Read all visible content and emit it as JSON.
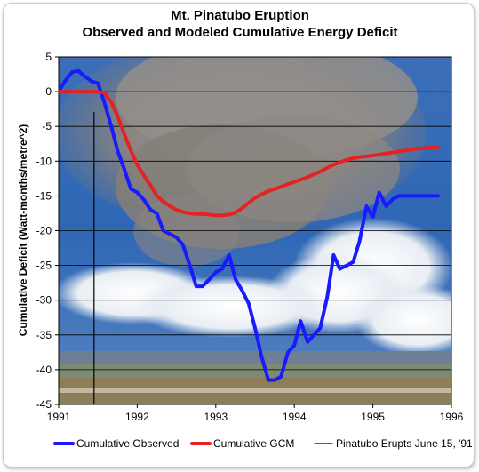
{
  "chart_data": {
    "type": "line",
    "title": "Mt. Pinatubo Eruption",
    "subtitle": "Observed and Modeled Cumulative Energy Deficit",
    "xlabel": "",
    "ylabel": "Cumulative Deficit (Watt-months/metre^2)",
    "xlim": [
      1991,
      1996
    ],
    "ylim": [
      -45,
      5
    ],
    "xticks": [
      "1991",
      "1992",
      "1993",
      "1994",
      "1995",
      "1996"
    ],
    "yticks": [
      "5",
      "0",
      "-5",
      "-10",
      "-15",
      "-20",
      "-25",
      "-30",
      "-35",
      "-40",
      "-45"
    ],
    "grid": "horizontal",
    "legend_position": "bottom",
    "background": "photograph of the eruption plume",
    "series": [
      {
        "name": "Cumulative Observed",
        "color": "#1a1aff",
        "x": [
          1991.0,
          1991.08,
          1991.17,
          1991.25,
          1991.33,
          1991.42,
          1991.5,
          1991.58,
          1991.67,
          1991.75,
          1991.83,
          1991.92,
          1992.0,
          1992.08,
          1992.17,
          1992.25,
          1992.33,
          1992.42,
          1992.5,
          1992.58,
          1992.67,
          1992.75,
          1992.83,
          1992.92,
          1993.0,
          1993.08,
          1993.17,
          1993.25,
          1993.33,
          1993.42,
          1993.5,
          1993.58,
          1993.67,
          1993.75,
          1993.83,
          1993.92,
          1994.0,
          1994.08,
          1994.17,
          1994.25,
          1994.33,
          1994.42,
          1994.5,
          1994.58,
          1994.67,
          1994.75,
          1994.83,
          1994.92,
          1995.0,
          1995.08,
          1995.17,
          1995.25,
          1995.33,
          1995.42,
          1995.5,
          1995.58,
          1995.67,
          1995.75,
          1995.83
        ],
        "values": [
          0.0,
          1.5,
          2.8,
          3.0,
          2.2,
          1.5,
          1.2,
          -1.5,
          -5.0,
          -8.5,
          -11.0,
          -14.0,
          -14.5,
          -15.5,
          -17.0,
          -17.5,
          -20.0,
          -20.5,
          -21.0,
          -22.0,
          -25.0,
          -28.0,
          -28.0,
          -27.0,
          -26.0,
          -25.5,
          -23.5,
          -27.0,
          -28.5,
          -30.5,
          -34.0,
          -38.0,
          -41.5,
          -41.5,
          -41.0,
          -37.5,
          -36.5,
          -33.0,
          -36.0,
          -35.0,
          -34.0,
          -29.5,
          -23.5,
          -25.5,
          -25.0,
          -24.5,
          -21.5,
          -16.5,
          -18.0,
          -14.5,
          -16.5,
          -15.5,
          -15.0,
          -15.0,
          -15.0,
          -15.0,
          -15.0,
          -15.0,
          -15.0
        ]
      },
      {
        "name": "Cumulative GCM",
        "color": "#e52222",
        "x": [
          1991.0,
          1991.25,
          1991.5,
          1991.58,
          1991.67,
          1991.75,
          1991.83,
          1991.92,
          1992.0,
          1992.08,
          1992.17,
          1992.25,
          1992.33,
          1992.42,
          1992.5,
          1992.58,
          1992.67,
          1992.75,
          1992.83,
          1992.92,
          1993.0,
          1993.08,
          1993.17,
          1993.25,
          1993.33,
          1993.42,
          1993.5,
          1993.58,
          1993.67,
          1993.75,
          1993.83,
          1993.92,
          1994.0,
          1994.17,
          1994.33,
          1994.5,
          1994.67,
          1994.83,
          1995.0,
          1995.17,
          1995.33,
          1995.5,
          1995.67,
          1995.83
        ],
        "values": [
          0.0,
          0.0,
          0.0,
          -0.2,
          -1.5,
          -3.5,
          -6.0,
          -8.5,
          -10.5,
          -12.0,
          -13.5,
          -15.0,
          -15.8,
          -16.5,
          -17.0,
          -17.3,
          -17.5,
          -17.6,
          -17.6,
          -17.7,
          -17.8,
          -17.8,
          -17.7,
          -17.4,
          -16.8,
          -16.0,
          -15.3,
          -14.8,
          -14.3,
          -14.0,
          -13.7,
          -13.3,
          -13.0,
          -12.3,
          -11.5,
          -10.5,
          -9.8,
          -9.4,
          -9.2,
          -8.9,
          -8.6,
          -8.3,
          -8.1,
          -8.0
        ]
      },
      {
        "name": "Pinatubo Erupts June 15, '91",
        "color": "#000000",
        "x": [
          1991.45,
          1991.45
        ],
        "values": [
          -3.0,
          -45.0
        ]
      }
    ]
  }
}
